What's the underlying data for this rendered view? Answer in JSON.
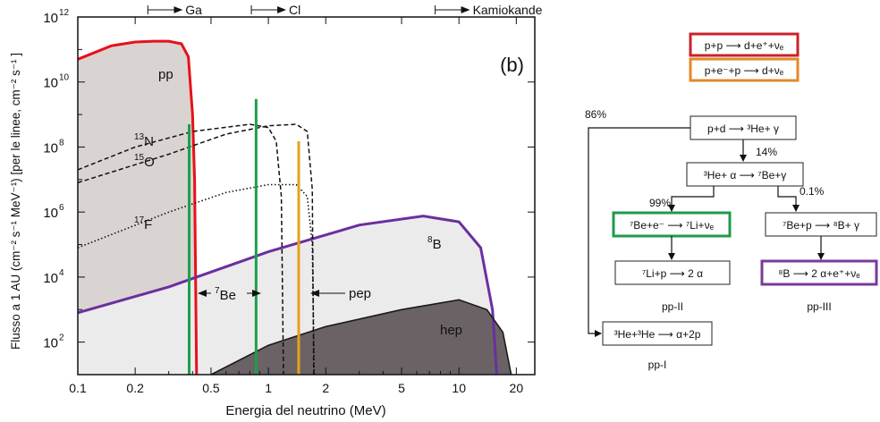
{
  "chart_data": {
    "type": "line",
    "title": "",
    "panel_label": "(b)",
    "xlabel": "Energia del neutrino (MeV)",
    "ylabel": "Flusso a 1 AU (cm⁻² s⁻¹ MeV⁻¹) [per le linee, cm⁻² s⁻¹ ]",
    "x_scale": "log",
    "y_scale": "log",
    "xlim": [
      0.1,
      25
    ],
    "ylim": [
      10,
      1000000000000
    ],
    "x_ticks": [
      {
        "value": 0.1,
        "label": "0.1"
      },
      {
        "value": 0.2,
        "label": "0.2"
      },
      {
        "value": 0.5,
        "label": "0.5"
      },
      {
        "value": 1,
        "label": "1"
      },
      {
        "value": 2,
        "label": "2"
      },
      {
        "value": 5,
        "label": "5"
      },
      {
        "value": 10,
        "label": "10"
      },
      {
        "value": 20,
        "label": "20"
      }
    ],
    "y_ticks": [
      {
        "value": 100,
        "base": "10",
        "exp": "2"
      },
      {
        "value": 10000,
        "base": "10",
        "exp": "4"
      },
      {
        "value": 1000000,
        "base": "10",
        "exp": "6"
      },
      {
        "value": 100000000,
        "base": "10",
        "exp": "8"
      },
      {
        "value": 10000000000,
        "base": "10",
        "exp": "10"
      },
      {
        "value": 1000000000000,
        "base": "10",
        "exp": "12"
      }
    ],
    "thresholds": [
      {
        "label": "Ga",
        "x": 0.233
      },
      {
        "label": "Cl",
        "x": 0.814
      },
      {
        "label": "Kamiokande",
        "x": 7.5
      }
    ],
    "spectra": [
      {
        "id": "pp",
        "label": "pp",
        "style": "area",
        "color": "#e8101a",
        "fill": "#d9d4d1",
        "x": [
          0.1,
          0.15,
          0.2,
          0.25,
          0.3,
          0.35,
          0.38,
          0.4,
          0.41,
          0.42
        ],
        "y": [
          50000000000,
          130000000000,
          170000000000,
          180000000000,
          180000000000,
          150000000000,
          60000000000,
          1000000000,
          10000000,
          10
        ]
      },
      {
        "id": "B8",
        "label": "8B",
        "style": "area",
        "color": "#6a2fa0",
        "fill": "#ecebec",
        "x": [
          0.1,
          0.3,
          1,
          3,
          6.5,
          10,
          13,
          15,
          15.8
        ],
        "y": [
          800,
          5000,
          60000,
          400000,
          750000,
          500000,
          80000,
          1000,
          10
        ]
      },
      {
        "id": "hep",
        "label": "hep",
        "style": "area",
        "color": "#1a1a1a",
        "fill": "#6b6265",
        "x": [
          0.5,
          1,
          2,
          5,
          10,
          14,
          17,
          18.8
        ],
        "y": [
          10,
          80,
          300,
          1000,
          2000,
          1000,
          200,
          10
        ]
      },
      {
        "id": "N13",
        "label": "13N",
        "style": "dashed",
        "color": "#111111",
        "x": [
          0.1,
          0.2,
          0.4,
          0.8,
          1.0,
          1.1,
          1.17,
          1.2
        ],
        "y": [
          20000000,
          100000000,
          300000000,
          500000000,
          400000000,
          150000000,
          3000000,
          10
        ]
      },
      {
        "id": "O15",
        "label": "15O",
        "style": "dashed",
        "color": "#111111",
        "x": [
          0.1,
          0.3,
          0.6,
          1.0,
          1.4,
          1.6,
          1.7,
          1.73
        ],
        "y": [
          8000000,
          60000000,
          250000000,
          450000000,
          500000000,
          300000000,
          5000000,
          10
        ]
      },
      {
        "id": "F17",
        "label": "17F",
        "style": "dotted",
        "color": "#111111",
        "x": [
          0.1,
          0.3,
          0.6,
          1.0,
          1.4,
          1.6,
          1.7,
          1.74
        ],
        "y": [
          80000,
          1000000,
          4000000,
          7000000,
          7000000,
          3000000,
          100000,
          10
        ]
      }
    ],
    "lines": [
      {
        "id": "Be7a",
        "label": "7Be",
        "x": 0.384,
        "flux": 500000000,
        "color": "#1aa04a"
      },
      {
        "id": "Be7b",
        "label": "",
        "x": 0.862,
        "flux": 3000000000,
        "color": "#1aa04a"
      },
      {
        "id": "pep",
        "label": "pep",
        "x": 1.442,
        "flux": 150000000,
        "color": "#e6a21a"
      }
    ]
  },
  "diagram": {
    "boxes": [
      {
        "id": "pp-reaction",
        "text": "p+p ⟶ d+e⁺+νₑ",
        "color": "#c8232b"
      },
      {
        "id": "pep-reaction",
        "text": "p+e⁻+p ⟶ d+νₑ",
        "color": "#e0892a"
      },
      {
        "id": "pd-reaction",
        "text": "p+d ⟶ ³He+ γ",
        "color": "#222222"
      },
      {
        "id": "he3-alpha-reaction",
        "text": "³He+ α ⟶ ⁷Be+γ",
        "color": "#222222"
      },
      {
        "id": "be7-e-reaction",
        "text": "⁷Be+e⁻ ⟶ ⁷Li+νₑ",
        "color": "#1f9a4a"
      },
      {
        "id": "be7-p-reaction",
        "text": "⁷Be+p ⟶ ⁸B+ γ",
        "color": "#222222"
      },
      {
        "id": "li7-p-reaction",
        "text": "⁷Li+p ⟶ 2 α",
        "color": "#222222"
      },
      {
        "id": "b8-decay-reaction",
        "text": "⁸B ⟶ 2 α+e⁺+νₑ",
        "color": "#7a3a99"
      },
      {
        "id": "he3-he3-reaction",
        "text": "³He+³He ⟶ α+2p",
        "color": "#222222"
      }
    ],
    "branches": {
      "b86": "86%",
      "b14": "14%",
      "b99": "99%",
      "b01": "0.1%"
    },
    "chains": {
      "pp1": "pp-I",
      "pp2": "pp-II",
      "pp3": "pp-III"
    }
  }
}
